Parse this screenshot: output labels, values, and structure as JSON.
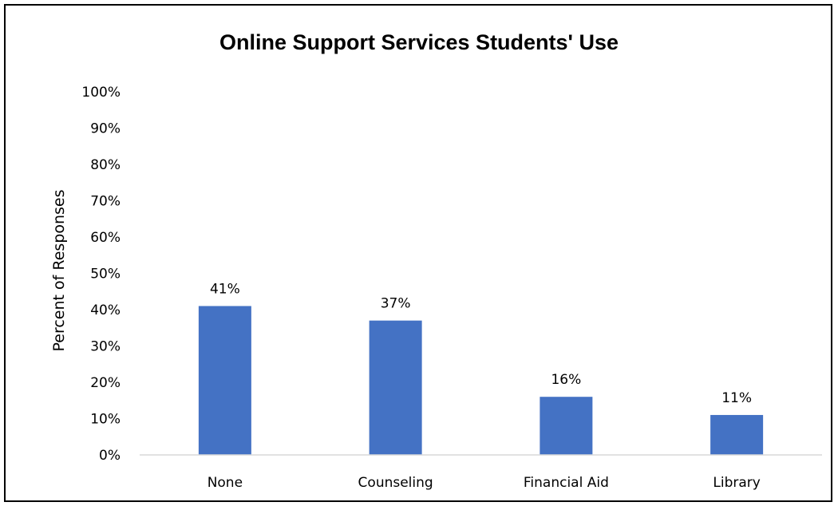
{
  "chart_data": {
    "type": "bar",
    "title": "Online Support Services Students' Use",
    "xlabel": "",
    "ylabel": "Percent of Responses",
    "categories": [
      "None",
      "Counseling",
      "Financial Aid",
      "Library"
    ],
    "values": [
      41,
      37,
      16,
      11
    ],
    "data_labels": [
      "41%",
      "37%",
      "16%",
      "11%"
    ],
    "ylim": [
      0,
      100
    ],
    "y_ticks": [
      0,
      10,
      20,
      30,
      40,
      50,
      60,
      70,
      80,
      90,
      100
    ],
    "y_tick_labels": [
      "0%",
      "10%",
      "20%",
      "30%",
      "40%",
      "50%",
      "60%",
      "70%",
      "80%",
      "90%",
      "100%"
    ],
    "grid": false,
    "legend": "none",
    "bar_color": "#4472C4"
  }
}
